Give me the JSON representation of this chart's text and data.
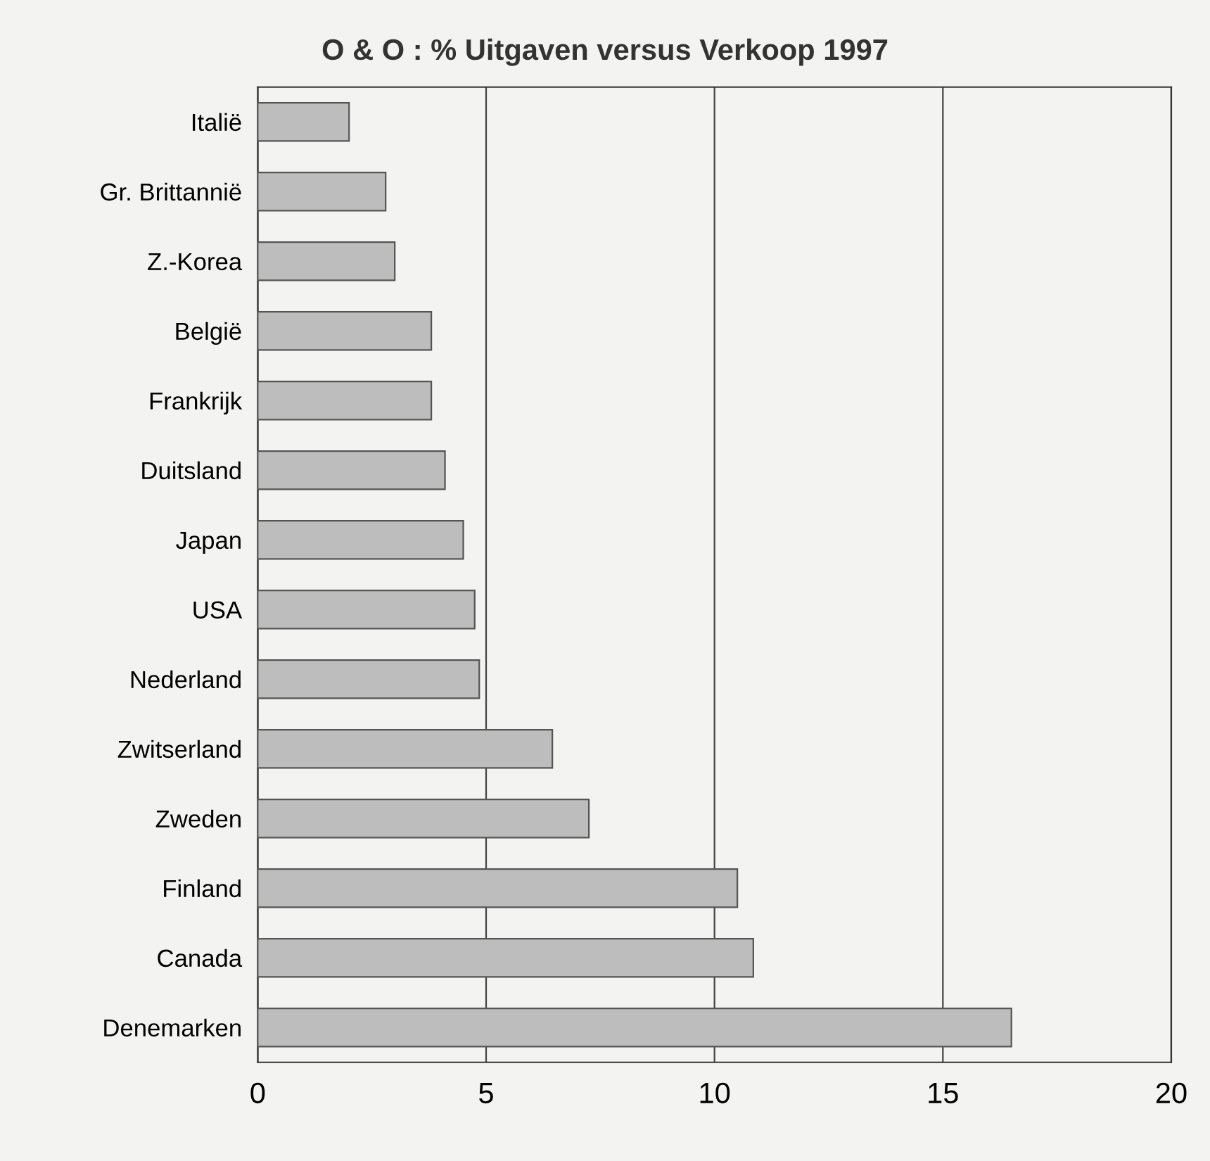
{
  "chart_data": {
    "type": "bar",
    "orientation": "horizontal",
    "title": "O & O : % Uitgaven versus Verkoop 1997",
    "categories": [
      "Italië",
      "Gr. Brittannië",
      "Z.-Korea",
      "België",
      "Frankrijk",
      "Duitsland",
      "Japan",
      "USA",
      "Nederland",
      "Zwitserland",
      "Zweden",
      "Finland",
      "Canada",
      "Denemarken"
    ],
    "values": [
      2.0,
      2.8,
      3.0,
      3.8,
      3.8,
      4.1,
      4.5,
      4.75,
      4.85,
      6.45,
      7.25,
      10.5,
      10.85,
      16.5
    ],
    "color": "#bdbdbd",
    "xlim": [
      0,
      20
    ],
    "xticks": [
      0,
      5,
      10,
      15,
      20
    ],
    "grid": "x",
    "legend": false
  }
}
